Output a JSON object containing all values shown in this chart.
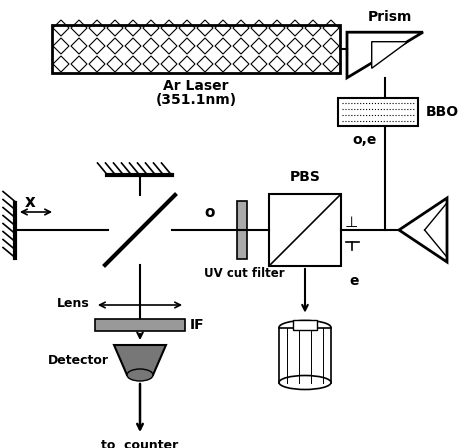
{
  "background_color": "#ffffff",
  "line_color": "#000000",
  "figsize": [
    4.74,
    4.48
  ],
  "dpi": 100,
  "xlim": [
    0,
    474
  ],
  "ylim": [
    0,
    448
  ]
}
